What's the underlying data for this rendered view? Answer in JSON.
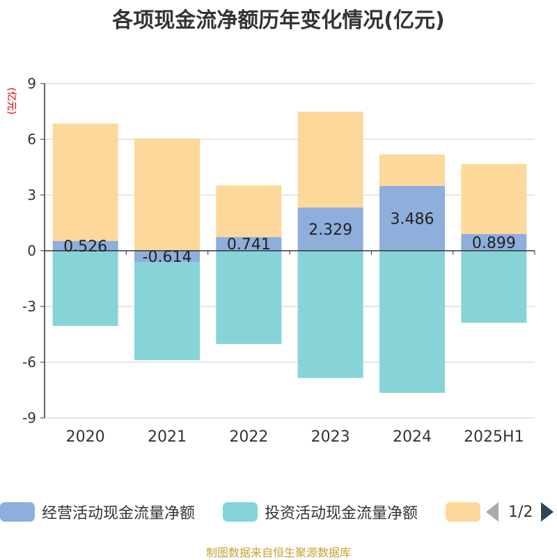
{
  "title": "各项现金流净额历年变化情况(亿元)",
  "footer": "制图数据来自恒生聚源数据库",
  "legend": {
    "pager_text": "1/2"
  },
  "chart_data": {
    "type": "bar",
    "stacked": true,
    "ylabel": "(亿元)",
    "ylim": [
      -9,
      9
    ],
    "yticks": [
      9,
      6,
      3,
      0,
      -3,
      -6,
      -9
    ],
    "categories": [
      "2020",
      "2021",
      "2022",
      "2023",
      "2024",
      "2025H1"
    ],
    "series": [
      {
        "name": "经营活动现金流量净额",
        "color": "#8eaedb",
        "values": [
          0.526,
          -0.614,
          0.741,
          2.329,
          3.486,
          0.899
        ],
        "labels": [
          "0.526",
          "-0.614",
          "0.741",
          "2.329",
          "3.486",
          "0.899"
        ]
      },
      {
        "name": "投资活动现金流量净额",
        "color": "#86d4d8",
        "values": [
          -4.05,
          -5.28,
          -5.02,
          -6.85,
          -7.65,
          -3.88
        ]
      },
      {
        "name": "",
        "color": "#fdd89b",
        "values": [
          6.32,
          6.05,
          2.78,
          5.16,
          1.7,
          3.77
        ]
      }
    ],
    "grid": true,
    "legend_position": "bottom"
  }
}
